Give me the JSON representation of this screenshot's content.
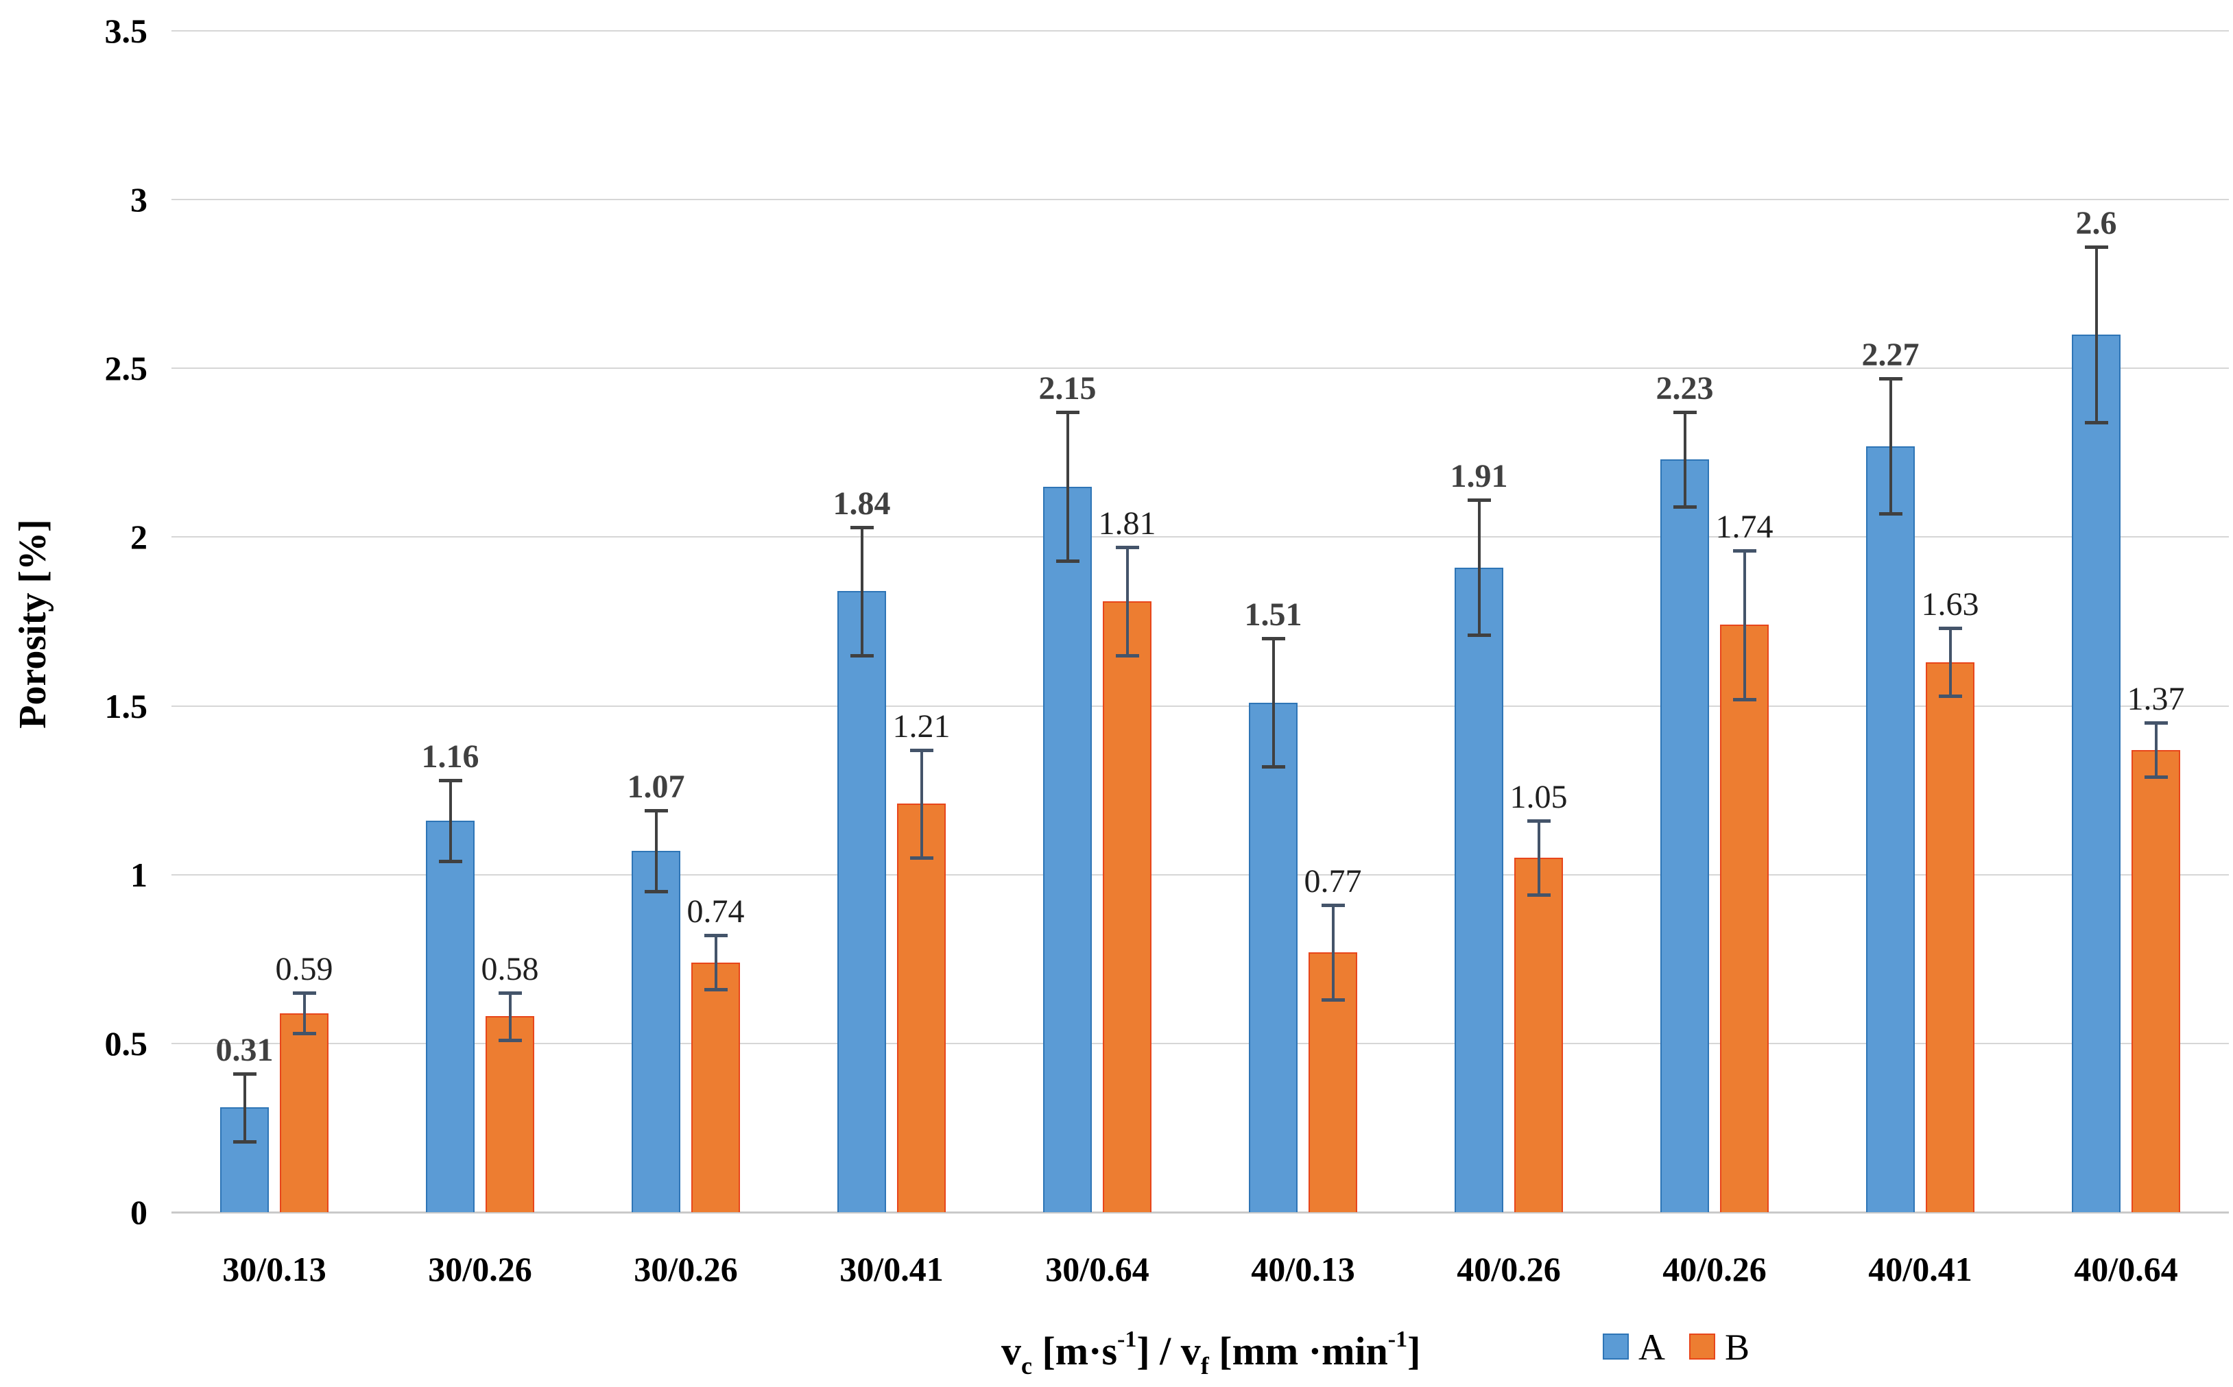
{
  "chart_data": {
    "type": "bar",
    "title": "",
    "ylabel": "Porosity [%]",
    "xlabel_parts": [
      {
        "text": "v",
        "style": "normal"
      },
      {
        "text": "c",
        "style": "sub"
      },
      {
        "text": " [m·s",
        "style": "normal"
      },
      {
        "text": "-1",
        "style": "sup"
      },
      {
        "text": "] / v",
        "style": "normal"
      },
      {
        "text": "f",
        "style": "sub"
      },
      {
        "text": " [mm ·min",
        "style": "normal"
      },
      {
        "text": "-1",
        "style": "sup"
      },
      {
        "text": "]",
        "style": "normal"
      }
    ],
    "categories": [
      "30/0.13",
      "30/0.26",
      "30/0.26",
      "30/0.41",
      "30/0.64",
      "40/0.13",
      "40/0.26",
      "40/0.26",
      "40/0.41",
      "40/0.64"
    ],
    "series": [
      {
        "name": "A",
        "fill": "#5B9BD5",
        "border": "#2E75B6",
        "error_color": "#404040",
        "label_color": "#404040",
        "label_bold": true,
        "values": [
          0.31,
          1.16,
          1.07,
          1.84,
          2.15,
          1.51,
          1.91,
          2.23,
          2.27,
          2.6
        ],
        "labels": [
          "0.31",
          "1.16",
          "1.07",
          "1.84",
          "2.15",
          "1.51",
          "1.91",
          "2.23",
          "2.27",
          "2.6"
        ],
        "errors": [
          0.1,
          0.12,
          0.12,
          0.19,
          0.22,
          0.19,
          0.2,
          0.14,
          0.2,
          0.26
        ]
      },
      {
        "name": "B",
        "fill": "#ED7D31",
        "border": "#E8461B",
        "error_color": "#44546A",
        "label_color": "#1F1F1F",
        "label_bold": false,
        "values": [
          0.59,
          0.58,
          0.74,
          1.21,
          1.81,
          0.77,
          1.05,
          1.74,
          1.63,
          1.37
        ],
        "labels": [
          "0.59",
          "0.58",
          "0.74",
          "1.21",
          "1.81",
          "0.77",
          "1.05",
          "1.74",
          "1.63",
          "1.37"
        ],
        "errors": [
          0.06,
          0.07,
          0.08,
          0.16,
          0.16,
          0.14,
          0.11,
          0.22,
          0.1,
          0.08
        ]
      }
    ],
    "ylim": [
      0,
      3.5
    ],
    "yticks": [
      "0",
      "0.5",
      "1",
      "1.5",
      "2",
      "2.5",
      "3",
      "3.5"
    ],
    "grid": true,
    "legend_position": "bottom-right"
  },
  "colors": {
    "gridline": "#D6D6D6",
    "axis_line": "#C9C9C9",
    "background": "#FFFFFF",
    "tick_label": "#000000"
  }
}
